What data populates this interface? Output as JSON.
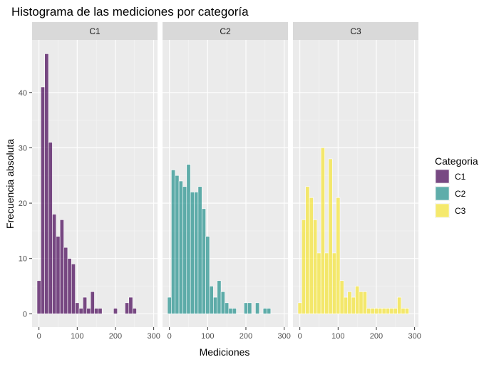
{
  "chart_data": {
    "type": "bar",
    "title": "Histograma de las mediciones por categoría",
    "xlabel": "Mediciones",
    "ylabel": "Frecuencia absoluta",
    "xlim": [
      -18,
      310
    ],
    "ylim": [
      -2.4,
      49.5
    ],
    "x_ticks": [
      0,
      100,
      200,
      300
    ],
    "y_ticks": [
      0,
      10,
      20,
      30,
      40
    ],
    "x_tick_labels": [
      "0",
      "100",
      "200",
      "300"
    ],
    "y_tick_labels": [
      "0",
      "10",
      "20",
      "30",
      "40"
    ],
    "bin_width": 10,
    "grid": true,
    "legend": {
      "title": "Categoria",
      "position": "right"
    },
    "facets": [
      {
        "name": "C1",
        "color": "#440154",
        "bins": [
          [
            0,
            6
          ],
          [
            10,
            41
          ],
          [
            20,
            47
          ],
          [
            30,
            31
          ],
          [
            40,
            18
          ],
          [
            50,
            14
          ],
          [
            60,
            17
          ],
          [
            70,
            12
          ],
          [
            80,
            10
          ],
          [
            90,
            9
          ],
          [
            100,
            2
          ],
          [
            110,
            1
          ],
          [
            120,
            3
          ],
          [
            130,
            1
          ],
          [
            140,
            4
          ],
          [
            150,
            1
          ],
          [
            160,
            1
          ],
          [
            200,
            1
          ],
          [
            230,
            2
          ],
          [
            240,
            3
          ],
          [
            250,
            1
          ]
        ]
      },
      {
        "name": "C2",
        "color": "#21908C",
        "bins": [
          [
            0,
            3
          ],
          [
            10,
            26
          ],
          [
            20,
            25
          ],
          [
            30,
            24
          ],
          [
            40,
            23
          ],
          [
            50,
            27
          ],
          [
            60,
            22
          ],
          [
            70,
            22
          ],
          [
            80,
            23
          ],
          [
            90,
            19
          ],
          [
            100,
            14
          ],
          [
            110,
            5
          ],
          [
            120,
            3
          ],
          [
            130,
            6
          ],
          [
            140,
            4
          ],
          [
            150,
            2
          ],
          [
            160,
            1
          ],
          [
            170,
            1
          ],
          [
            200,
            2
          ],
          [
            210,
            2
          ],
          [
            230,
            2
          ],
          [
            250,
            1
          ],
          [
            260,
            1
          ]
        ]
      },
      {
        "name": "C3",
        "color": "#F7E634",
        "bins": [
          [
            0,
            2
          ],
          [
            10,
            17
          ],
          [
            20,
            23
          ],
          [
            30,
            21
          ],
          [
            40,
            17
          ],
          [
            50,
            11
          ],
          [
            60,
            30
          ],
          [
            70,
            11
          ],
          [
            80,
            28
          ],
          [
            90,
            11
          ],
          [
            100,
            21
          ],
          [
            110,
            6
          ],
          [
            120,
            3
          ],
          [
            130,
            4
          ],
          [
            140,
            3
          ],
          [
            150,
            5
          ],
          [
            160,
            4
          ],
          [
            170,
            4
          ],
          [
            180,
            1
          ],
          [
            190,
            1
          ],
          [
            200,
            1
          ],
          [
            210,
            1
          ],
          [
            220,
            1
          ],
          [
            230,
            1
          ],
          [
            240,
            1
          ],
          [
            250,
            1
          ],
          [
            260,
            3
          ],
          [
            270,
            1
          ],
          [
            280,
            1
          ]
        ]
      }
    ]
  }
}
